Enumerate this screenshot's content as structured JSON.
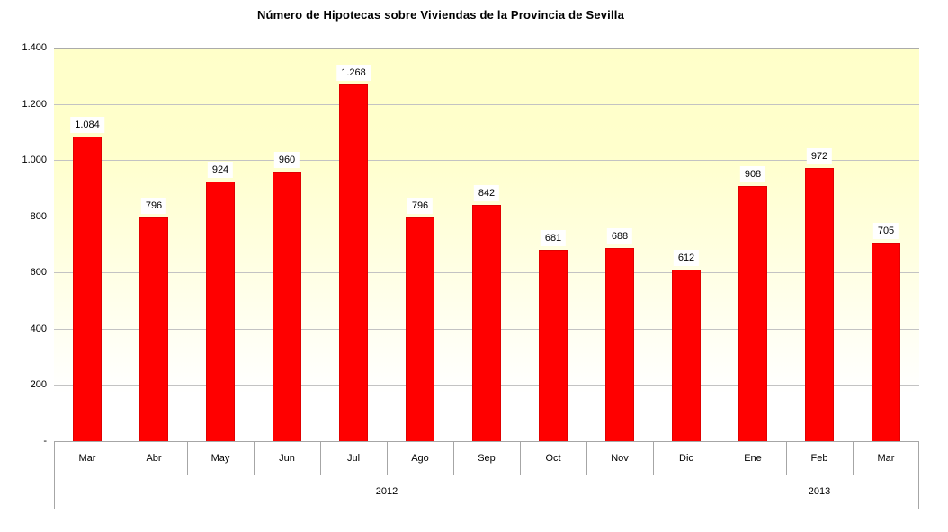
{
  "chart_data": {
    "type": "bar",
    "title": "Número de Hipotecas sobre Viviendas de la Provincia de Sevilla",
    "categories": [
      "Mar",
      "Abr",
      "May",
      "Jun",
      "Jul",
      "Ago",
      "Sep",
      "Oct",
      "Nov",
      "Dic",
      "Ene",
      "Feb",
      "Mar"
    ],
    "values": [
      1084,
      796,
      924,
      960,
      1268,
      796,
      842,
      681,
      688,
      612,
      908,
      972,
      705
    ],
    "labels": [
      "1.084",
      "796",
      "924",
      "960",
      "1.268",
      "796",
      "842",
      "681",
      "688",
      "612",
      "908",
      "972",
      "705"
    ],
    "year_groups": [
      {
        "label": "2012",
        "span": 10
      },
      {
        "label": "2013",
        "span": 3
      }
    ],
    "xlabel": "",
    "ylabel": "",
    "ylim": [
      0,
      1400
    ],
    "ytick_step": 200,
    "ytick_labels": [
      "-",
      "200",
      "400",
      "600",
      "800",
      "1.000",
      "1.200",
      "1.400"
    ],
    "grid": "horizontal",
    "legend": "none",
    "bar_color": "#FF0000",
    "plot_bg_top": "#FFFFCC",
    "plot_bg_bottom": "#FFFFFF",
    "gridline_color": "#C3C3C3",
    "axis_line_color": "#A6A6A6",
    "data_label_bg": "#FFFFFF"
  }
}
